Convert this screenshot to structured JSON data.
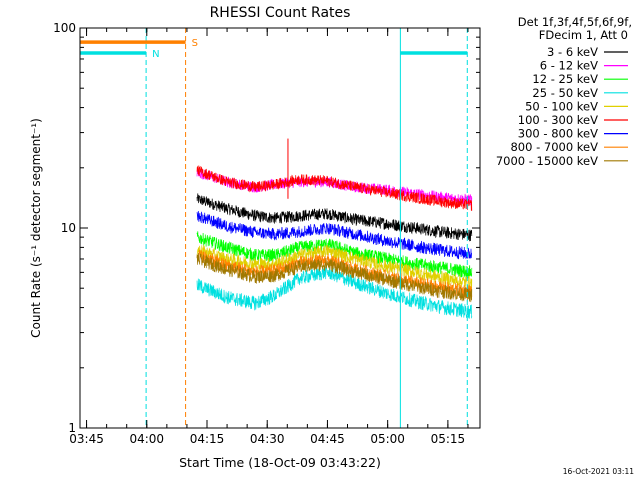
{
  "chart_data": {
    "type": "line",
    "title": "RHESSI Count Rates",
    "xlabel": "Start Time (18-Oct-09 03:43:22)",
    "ylabel": "Count Rate (s⁻¹ detector segment⁻¹)",
    "yscale": "log",
    "ylim": [
      1,
      100
    ],
    "xlim": [
      "03:43:22",
      "05:23:00"
    ],
    "x_ticks": [
      "03:45",
      "04:00",
      "04:15",
      "04:30",
      "04:45",
      "05:00",
      "05:15"
    ],
    "y_ticks": [
      "1",
      "10",
      "100"
    ],
    "legend_header": [
      "Det 1f,3f,4f,5f,6f,9f,",
      "FDecim 1, Att 0"
    ],
    "legend_position": "right",
    "timestamp": "16-Oct-2021 03:11",
    "vlines": [
      {
        "time": "03:43:22",
        "color": "#00e0e0",
        "style": "solid"
      },
      {
        "time": "03:59:50",
        "color": "#00e0e0",
        "style": "dashed"
      },
      {
        "time": "04:09:40",
        "color": "#ff8000",
        "style": "dashed"
      },
      {
        "time": "05:03:10",
        "color": "#00e0e0",
        "style": "solid"
      },
      {
        "time": "05:19:50",
        "color": "#00e0e0",
        "style": "dashed"
      }
    ],
    "flag_bars": [
      {
        "label": "S",
        "color": "#ff8000",
        "y": 85,
        "segments": [
          [
            "03:43:30",
            "04:09:40"
          ]
        ]
      },
      {
        "label": "N",
        "color": "#00e0e0",
        "y": 75,
        "segments": [
          [
            "03:43:30",
            "03:59:50"
          ],
          [
            "05:03:10",
            "05:19:50"
          ]
        ]
      }
    ],
    "x": [
      "04:12:30",
      "04:20",
      "04:27",
      "04:32",
      "04:38",
      "04:45",
      "04:52",
      "05:00",
      "05:07",
      "05:14",
      "05:21"
    ],
    "series": [
      {
        "name": "3 - 6 keV",
        "color": "#000000",
        "values": [
          14,
          12.5,
          11.5,
          11.2,
          11.5,
          11.8,
          11,
          10.5,
          10,
          9.5,
          9.2
        ]
      },
      {
        "name": "6 - 12 keV",
        "color": "#ff00ff",
        "values": [
          19,
          17,
          16,
          16.5,
          17,
          17,
          16,
          15.5,
          14.8,
          14.2,
          13.8
        ]
      },
      {
        "name": "12 - 25 keV",
        "color": "#00ff00",
        "values": [
          9,
          8,
          7.3,
          7.3,
          8,
          8.3,
          7.5,
          7,
          6.6,
          6.3,
          6
        ]
      },
      {
        "name": "25 - 50 keV",
        "color": "#00e0e0",
        "values": [
          5.2,
          4.5,
          4.2,
          4.6,
          5.6,
          6,
          5.3,
          4.7,
          4.3,
          4,
          3.8
        ]
      },
      {
        "name": "50 - 100 keV",
        "color": "#e0d000",
        "values": [
          7.8,
          7,
          6.6,
          6.6,
          7.3,
          7.7,
          7,
          6.4,
          6,
          5.6,
          5.3
        ]
      },
      {
        "name": "100 - 300 keV",
        "color": "#ff0000",
        "values": [
          19.5,
          17,
          16,
          16.5,
          17.5,
          17.2,
          16,
          15,
          14.2,
          13.5,
          13
        ]
      },
      {
        "name": "300 - 800 keV",
        "color": "#0000ff",
        "values": [
          11.5,
          10.2,
          9.5,
          9.3,
          9.6,
          10,
          9.3,
          8.6,
          8.1,
          7.7,
          7.4
        ]
      },
      {
        "name": "800 - 7000 keV",
        "color": "#ff8000",
        "values": [
          7.4,
          6.5,
          6,
          6.1,
          6.7,
          6.9,
          6.2,
          5.7,
          5.3,
          5,
          4.8
        ]
      },
      {
        "name": "7000 - 15000 keV",
        "color": "#a07800",
        "values": [
          7,
          6.2,
          5.7,
          5.8,
          6.4,
          6.6,
          6,
          5.5,
          5.1,
          4.8,
          4.6
        ]
      }
    ],
    "spike": {
      "time": "04:35:10",
      "value": 28,
      "color": "#ff0000"
    }
  }
}
